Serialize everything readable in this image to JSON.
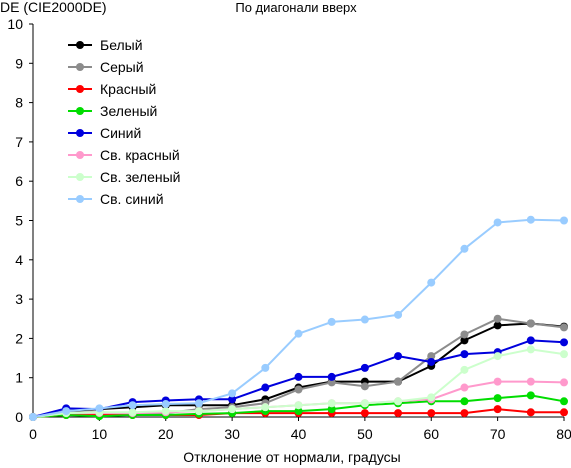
{
  "chart_data": {
    "type": "line",
    "title": "По диагонали вверх",
    "ylabel": "DE (CIE2000DE)",
    "xlabel": "Отклонение от нормали, градусы",
    "xlim": [
      0,
      80
    ],
    "ylim": [
      0,
      10
    ],
    "x_ticks": [
      0,
      10,
      20,
      30,
      40,
      50,
      60,
      70,
      80
    ],
    "y_ticks": [
      0,
      1,
      2,
      3,
      4,
      5,
      6,
      7,
      8,
      9,
      10
    ],
    "grid": false,
    "legend_position": "top-left",
    "x": [
      0,
      5,
      10,
      15,
      20,
      25,
      30,
      35,
      40,
      45,
      50,
      55,
      60,
      65,
      70,
      75,
      80
    ],
    "series": [
      {
        "name": "Белый",
        "color": "#000000",
        "values": [
          0,
          0.15,
          0.2,
          0.25,
          0.3,
          0.3,
          0.3,
          0.45,
          0.75,
          0.9,
          0.9,
          0.9,
          1.3,
          1.95,
          2.33,
          2.38,
          2.3
        ]
      },
      {
        "name": "Серый",
        "color": "#8c8c8c",
        "values": [
          0,
          0.12,
          0.12,
          0.1,
          0.1,
          0.2,
          0.25,
          0.35,
          0.7,
          0.88,
          0.78,
          0.9,
          1.55,
          2.1,
          2.5,
          2.38,
          2.28
        ]
      },
      {
        "name": "Красный",
        "color": "#ff0000",
        "values": [
          0,
          0.05,
          0.05,
          0.05,
          0.05,
          0.05,
          0.1,
          0.1,
          0.1,
          0.1,
          0.1,
          0.1,
          0.1,
          0.1,
          0.2,
          0.12,
          0.12
        ]
      },
      {
        "name": "Зеленый",
        "color": "#00dd00",
        "values": [
          0,
          0.05,
          0.02,
          0.05,
          0.05,
          0.08,
          0.1,
          0.15,
          0.15,
          0.2,
          0.3,
          0.35,
          0.4,
          0.4,
          0.48,
          0.55,
          0.4
        ]
      },
      {
        "name": "Синий",
        "color": "#0000dd",
        "values": [
          0,
          0.22,
          0.2,
          0.38,
          0.42,
          0.45,
          0.45,
          0.75,
          1.02,
          1.02,
          1.25,
          1.55,
          1.4,
          1.6,
          1.65,
          1.95,
          1.9
        ]
      },
      {
        "name": "Св. красный",
        "color": "#ff99cc",
        "values": [
          0,
          0.1,
          0.1,
          0.1,
          0.12,
          0.15,
          0.2,
          0.25,
          0.3,
          0.35,
          0.35,
          0.4,
          0.45,
          0.75,
          0.9,
          0.9,
          0.88
        ]
      },
      {
        "name": "Св. зеленый",
        "color": "#ccffcc",
        "values": [
          0,
          0.1,
          0.12,
          0.12,
          0.15,
          0.15,
          0.2,
          0.25,
          0.3,
          0.35,
          0.35,
          0.4,
          0.5,
          1.2,
          1.55,
          1.72,
          1.6
        ]
      },
      {
        "name": "Св. синий",
        "color": "#99ccff",
        "values": [
          0,
          0.15,
          0.22,
          0.3,
          0.33,
          0.35,
          0.6,
          1.25,
          2.12,
          2.42,
          2.48,
          2.6,
          3.42,
          4.28,
          4.95,
          5.02,
          5.0
        ]
      }
    ]
  }
}
